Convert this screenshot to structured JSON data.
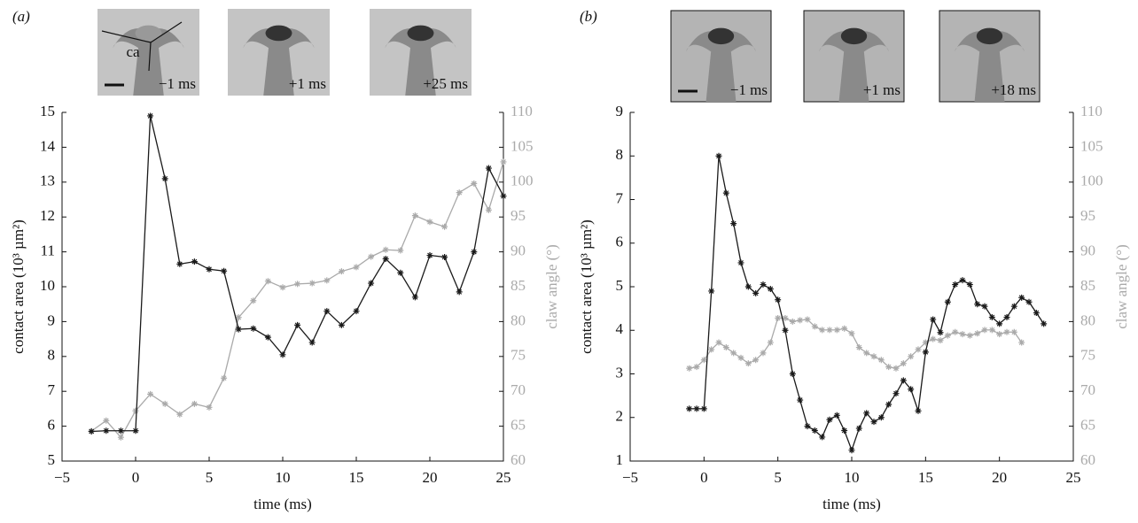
{
  "chart_data": [
    {
      "type": "line",
      "label": "(a)",
      "inset_border": false,
      "inset_shade": "#c4c4c4",
      "insets": [
        "−1 ms",
        "+1 ms",
        "+25 ms"
      ],
      "annotation": "ca",
      "xlabel": "time (ms)",
      "ylabel": "contact area (10³ µm²)",
      "y2label": "claw angle (°)",
      "xlim": [
        -5,
        25
      ],
      "xticks": [
        {
          "value": -5,
          "label": "−5"
        },
        0,
        5,
        10,
        15,
        20,
        25
      ],
      "ylim": [
        5,
        15
      ],
      "yticks": [
        5,
        6,
        7,
        8,
        9,
        10,
        11,
        12,
        13,
        14,
        15
      ],
      "y2lim": [
        60,
        110
      ],
      "y2ticks": [
        60,
        65,
        70,
        75,
        80,
        85,
        90,
        95,
        100,
        105,
        110
      ],
      "series": [
        {
          "color": "#1a1a1a",
          "x": [
            -3,
            -2,
            -1,
            0,
            1,
            2,
            3,
            4,
            5,
            6,
            7,
            8,
            9,
            10,
            11,
            12,
            13,
            14,
            15,
            16,
            17,
            18,
            19,
            20,
            21,
            22,
            23,
            24,
            25
          ],
          "values": [
            5.85,
            5.87,
            5.87,
            5.87,
            14.9,
            13.1,
            10.65,
            10.72,
            10.5,
            10.45,
            8.78,
            8.8,
            8.55,
            8.05,
            8.9,
            8.4,
            9.3,
            8.9,
            9.3,
            10.1,
            10.8,
            10.4,
            9.7,
            10.9,
            10.85,
            9.85,
            11.0,
            13.4,
            12.6
          ]
        },
        {
          "color": "#aaaaaa",
          "axis": "y2",
          "x": [
            -3,
            -2,
            -1,
            0,
            1,
            2,
            3,
            4,
            5,
            6,
            7,
            8,
            9,
            10,
            11,
            12,
            13,
            14,
            15,
            16,
            17,
            18,
            19,
            20,
            21,
            22,
            23,
            24,
            25
          ],
          "values": [
            64.3,
            65.8,
            63.4,
            67.2,
            69.6,
            68.2,
            66.7,
            68.2,
            67.7,
            71.9,
            80.6,
            83,
            85.8,
            84.9,
            85.4,
            85.5,
            85.9,
            87.2,
            87.8,
            89.3,
            90.3,
            90.2,
            95.2,
            94.3,
            93.6,
            98.5,
            99.8,
            96,
            102.9
          ]
        }
      ]
    },
    {
      "type": "line",
      "label": "(b)",
      "inset_border": true,
      "inset_shade": "#b4b4b4",
      "insets": [
        "−1 ms",
        "+1 ms",
        "+18 ms"
      ],
      "xlabel": "time (ms)",
      "ylabel": "contact area (10³ µm²)",
      "y2label": "claw angle (°)",
      "xlim": [
        -5,
        25
      ],
      "xticks": [
        {
          "value": -5,
          "label": "−5"
        },
        0,
        5,
        10,
        15,
        20,
        25
      ],
      "ylim": [
        1,
        9
      ],
      "yticks": [
        1,
        2,
        3,
        4,
        5,
        6,
        7,
        8,
        9
      ],
      "y2lim": [
        60,
        110
      ],
      "y2ticks": [
        60,
        65,
        70,
        75,
        80,
        85,
        90,
        95,
        100,
        105,
        110
      ],
      "series": [
        {
          "color": "#1a1a1a",
          "x": [
            -1,
            -0.5,
            0,
            0.5,
            1,
            1.5,
            2,
            2.5,
            3,
            3.5,
            4,
            4.5,
            5,
            5.5,
            6,
            6.5,
            7,
            7.5,
            8,
            8.5,
            9,
            9.5,
            10,
            10.5,
            11,
            11.5,
            12,
            12.5,
            13,
            13.5,
            14,
            14.5,
            15,
            15.5,
            16,
            16.5,
            17,
            17.5,
            18,
            18.5,
            19,
            19.5,
            20,
            20.5,
            21,
            21.5,
            22,
            22.5,
            23
          ],
          "values": [
            2.2,
            2.2,
            2.2,
            4.9,
            8.0,
            7.15,
            6.45,
            5.55,
            5.0,
            4.85,
            5.05,
            4.95,
            4.7,
            4.0,
            3.0,
            2.4,
            1.8,
            1.7,
            1.55,
            1.95,
            2.05,
            1.7,
            1.25,
            1.75,
            2.1,
            1.9,
            2.0,
            2.3,
            2.55,
            2.85,
            2.65,
            2.15,
            3.5,
            4.25,
            3.95,
            4.65,
            5.05,
            5.15,
            5.05,
            4.6,
            4.55,
            4.3,
            4.15,
            4.3,
            4.55,
            4.75,
            4.65,
            4.4,
            4.15
          ]
        },
        {
          "color": "#aaaaaa",
          "axis": "y2",
          "x": [
            -1,
            -0.5,
            0,
            0.5,
            1,
            1.5,
            2,
            2.5,
            3,
            3.5,
            4,
            4.5,
            5,
            5.5,
            6,
            6.5,
            7,
            7.5,
            8,
            8.5,
            9,
            9.5,
            10,
            10.5,
            11,
            11.5,
            12,
            12.5,
            13,
            13.5,
            14,
            14.5,
            15,
            15.5,
            16,
            16.5,
            17,
            17.5,
            18,
            18.5,
            19,
            19.5,
            20,
            20.5,
            21,
            21.5
          ],
          "values": [
            73.3,
            73.5,
            74.5,
            76,
            77,
            76.3,
            75.5,
            74.8,
            74,
            74.5,
            75.5,
            77,
            80.5,
            80.5,
            80,
            80.2,
            80.3,
            79.3,
            78.8,
            78.8,
            78.8,
            79,
            78.3,
            76.3,
            75.5,
            75,
            74.5,
            73.5,
            73.3,
            74,
            75,
            76,
            77,
            77.5,
            77.3,
            78,
            78.5,
            78.2,
            78,
            78.3,
            78.8,
            78.8,
            78.2,
            78.5,
            78.5,
            77
          ]
        }
      ]
    }
  ]
}
